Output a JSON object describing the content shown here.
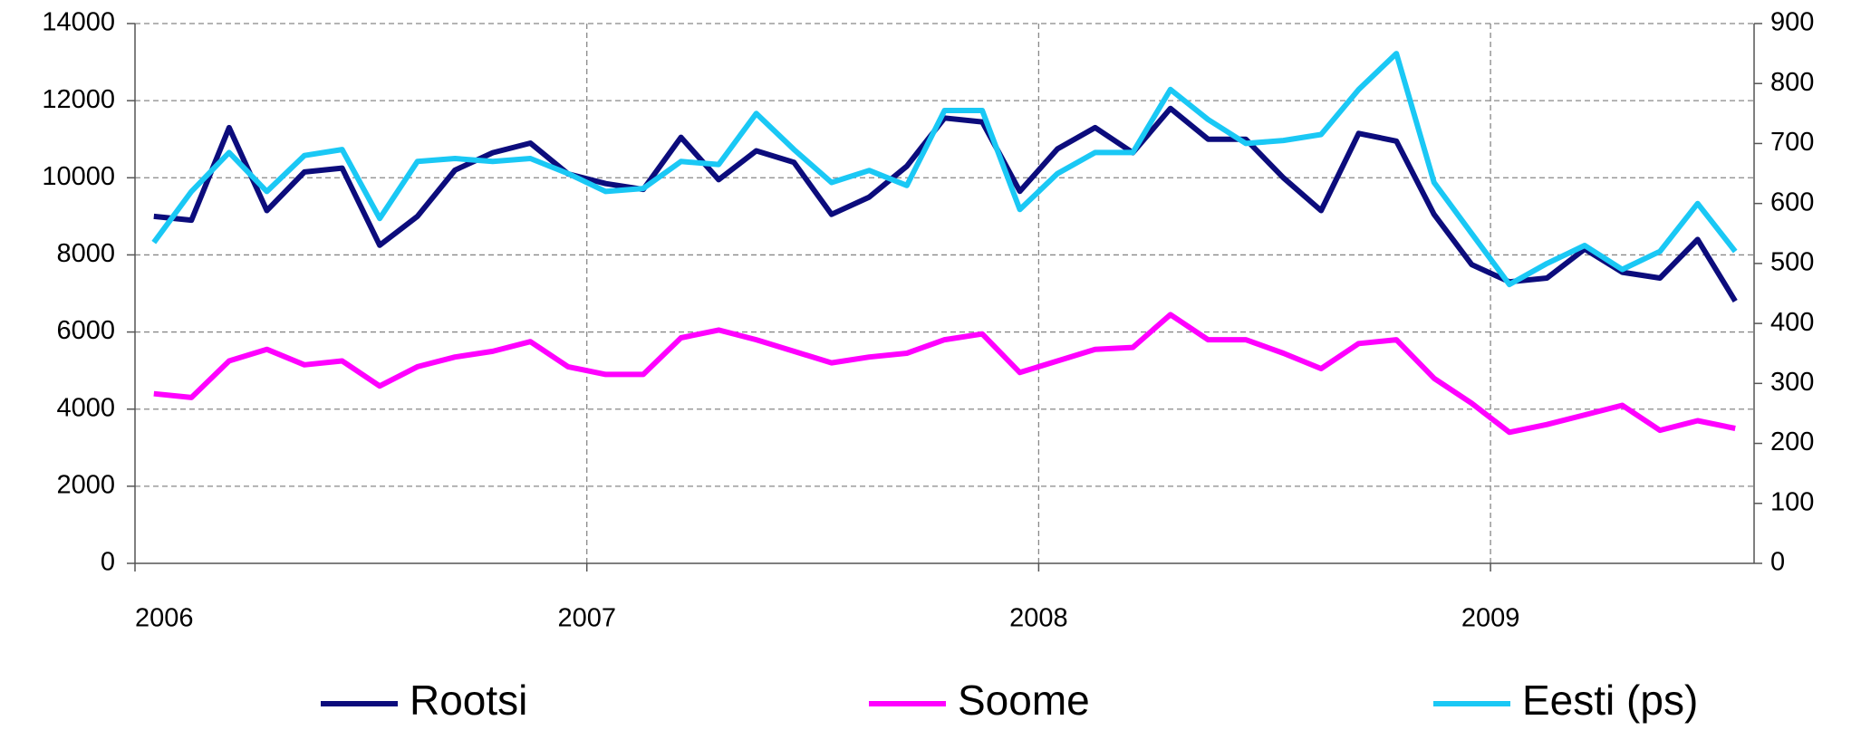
{
  "chart_data": {
    "type": "line",
    "categories": [
      "2006",
      null,
      null,
      null,
      null,
      null,
      null,
      null,
      null,
      null,
      null,
      null,
      "2007",
      null,
      null,
      null,
      null,
      null,
      null,
      null,
      null,
      null,
      null,
      null,
      "2008",
      null,
      null,
      null,
      null,
      null,
      null,
      null,
      null,
      null,
      null,
      null,
      "2009",
      null,
      null,
      null,
      null,
      null,
      null
    ],
    "series": [
      {
        "name": "Rootsi",
        "color": "#0c0c7c",
        "values": [
          9000,
          8900,
          11300,
          9150,
          10150,
          10250,
          8250,
          9000,
          10200,
          10650,
          10900,
          10100,
          9850,
          9700,
          11050,
          9950,
          10700,
          10400,
          9050,
          9500,
          10300,
          11550,
          11450,
          9650,
          10750,
          11300,
          10650,
          11800,
          11000,
          11000,
          10000,
          9150,
          11150,
          10950,
          9050,
          7750,
          7300,
          7400,
          8150,
          7550,
          7400,
          8400,
          6800
        ]
      },
      {
        "name": "Soome",
        "color": "#ff00ff",
        "values": [
          4400,
          4300,
          5250,
          5550,
          5150,
          5250,
          4600,
          5100,
          5350,
          5500,
          5750,
          5100,
          4900,
          4900,
          5850,
          6050,
          5800,
          5500,
          5200,
          5350,
          5450,
          5800,
          5950,
          4950,
          5250,
          5550,
          5600,
          6450,
          5800,
          5800,
          5450,
          5050,
          5700,
          5800,
          4800,
          4150,
          3400,
          3600,
          3850,
          4100,
          3450,
          3700,
          3500
        ]
      },
      {
        "name": "Eesti (ps)",
        "color": "#1ac8f5",
        "axis": "y2",
        "values": [
          535,
          620,
          685,
          620,
          680,
          690,
          575,
          670,
          675,
          670,
          675,
          650,
          620,
          625,
          670,
          665,
          750,
          690,
          635,
          655,
          630,
          755,
          755,
          590,
          650,
          685,
          685,
          790,
          740,
          700,
          705,
          715,
          790,
          850,
          635,
          550,
          465,
          500,
          530,
          490,
          520,
          600,
          520
        ]
      }
    ],
    "ylim": [
      0,
      14000
    ],
    "yticks": [
      0,
      2000,
      4000,
      6000,
      8000,
      10000,
      12000,
      14000
    ],
    "y2lim": [
      0,
      900
    ],
    "y2ticks": [
      0,
      100,
      200,
      300,
      400,
      500,
      600,
      700,
      800,
      900
    ],
    "grid": true,
    "legend": "bottom"
  }
}
